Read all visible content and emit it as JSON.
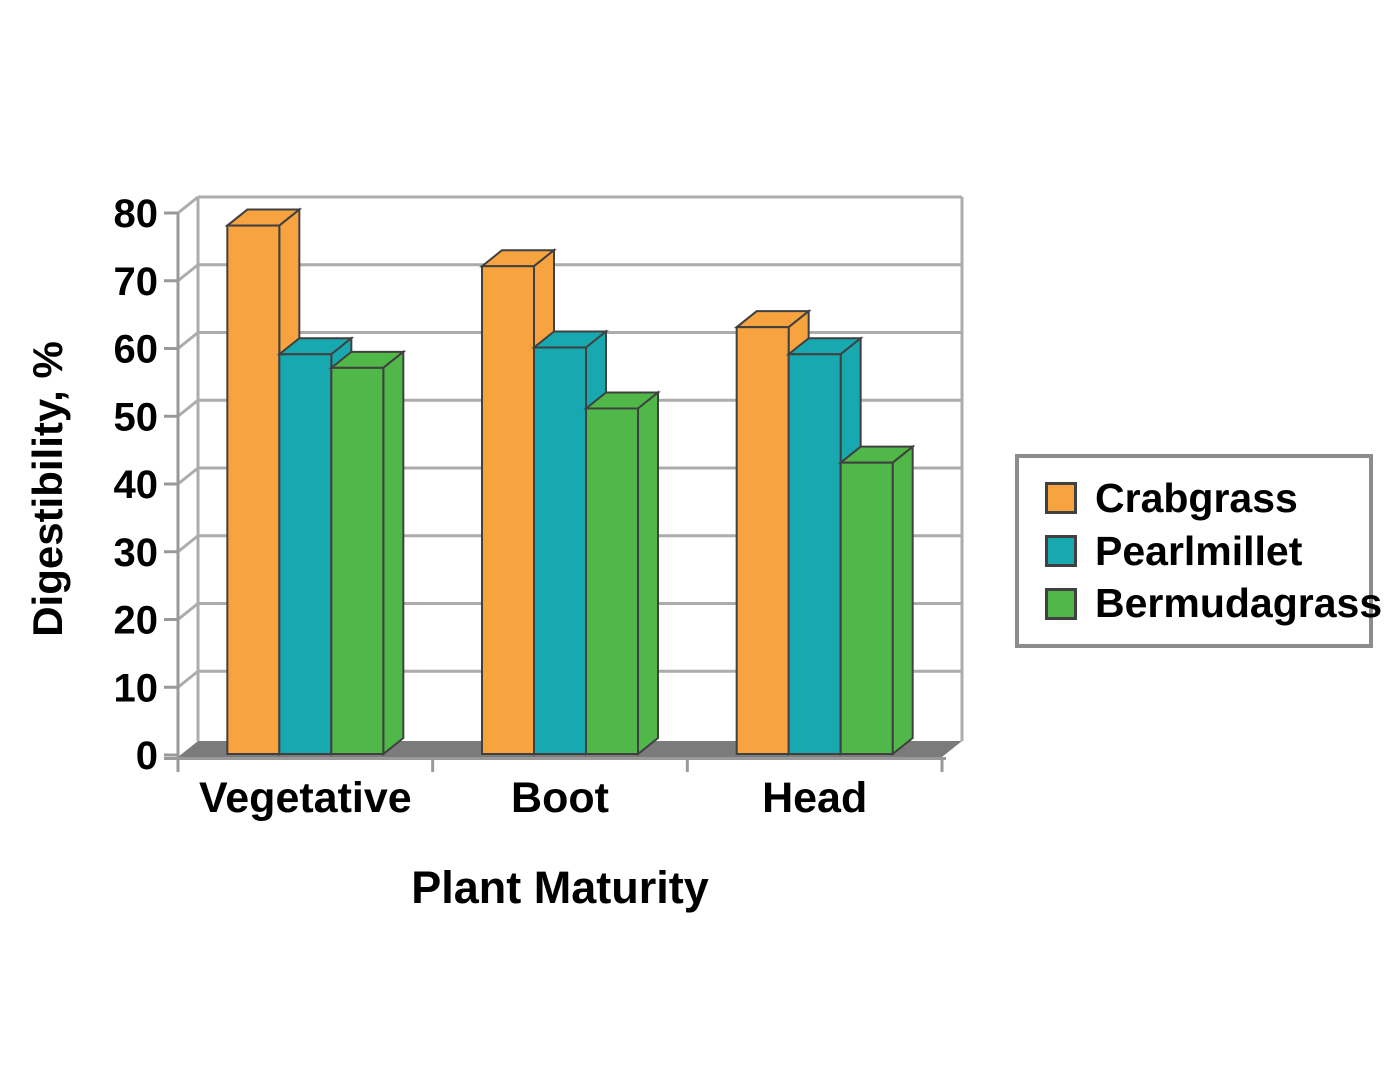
{
  "figure": {
    "background": "#ffffff"
  },
  "chart_data": {
    "type": "bar",
    "style": "3d-grouped",
    "title": "",
    "xlabel": "Plant Maturity",
    "ylabel": "Digestibility, %",
    "categories": [
      "Vegetative",
      "Boot",
      "Head"
    ],
    "series": [
      {
        "name": "Crabgrass",
        "color": "#F6A340",
        "values": [
          78,
          72,
          63
        ]
      },
      {
        "name": "Pearlmillet",
        "color": "#17A9AF",
        "values": [
          59,
          60,
          59
        ]
      },
      {
        "name": "Bermudagrass",
        "color": "#4FB848",
        "values": [
          57,
          51,
          43
        ]
      }
    ],
    "ylim": [
      0,
      80
    ],
    "ytick_step": 10,
    "ytick_labels": [
      "0",
      "10",
      "20",
      "30",
      "40",
      "50",
      "60",
      "70",
      "80"
    ],
    "grid": true,
    "legend_position": "right",
    "palette": {
      "wall_grid": "#ACACAC",
      "axis": "#999999",
      "floor": "#7B7B7B",
      "bar_outline": "#404040",
      "legend_border": "#8C8C8C",
      "text": "#000000"
    }
  }
}
